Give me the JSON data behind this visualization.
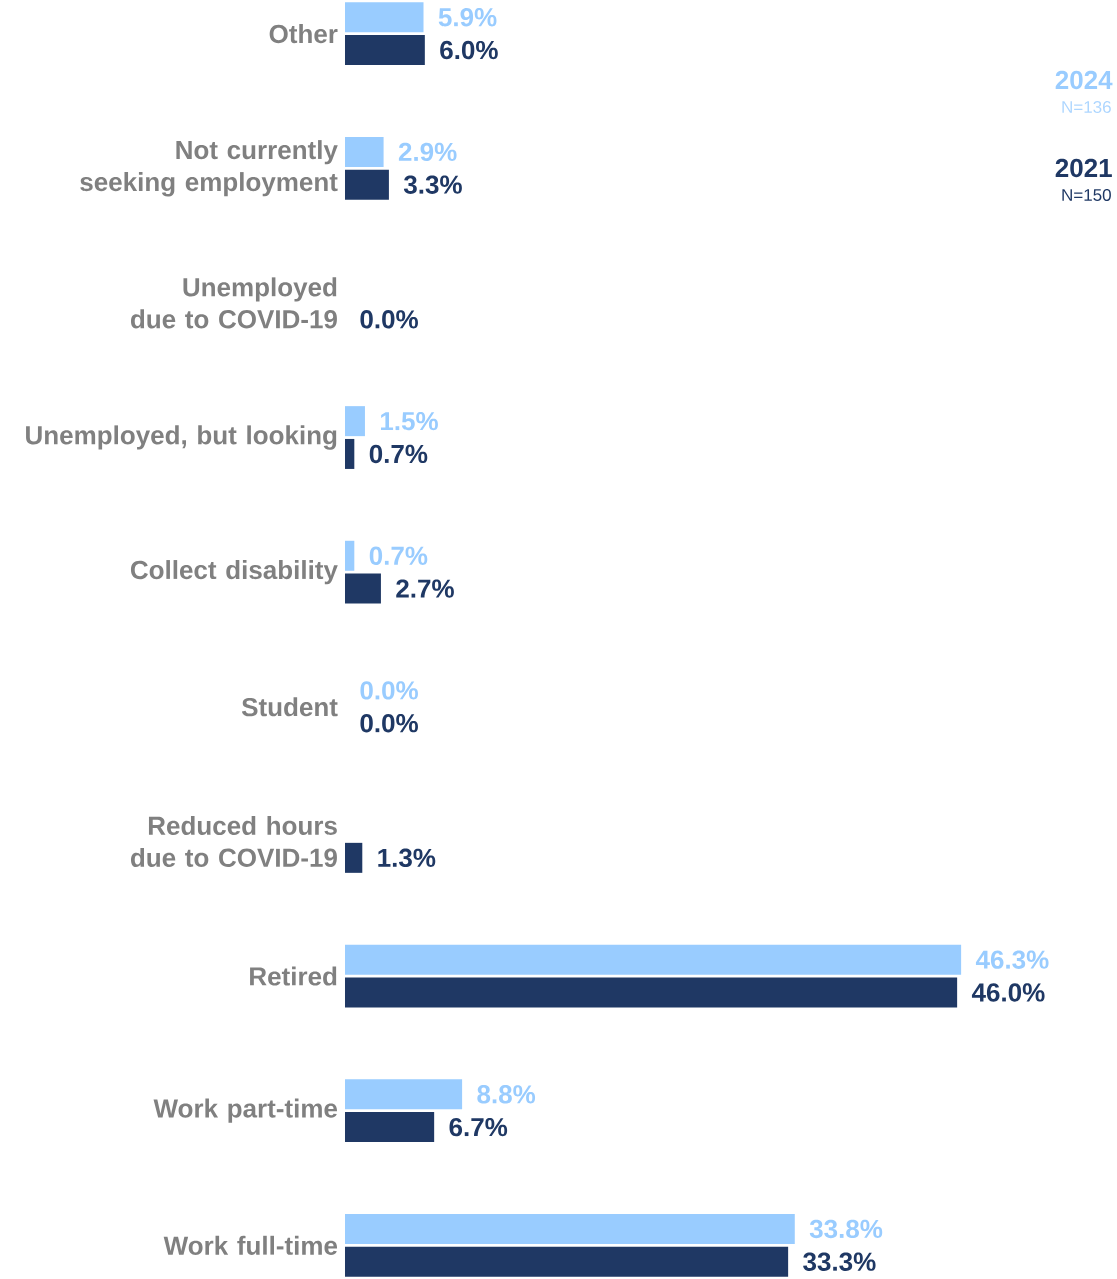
{
  "chart_data": {
    "type": "bar",
    "orientation": "horizontal",
    "tick_labels": "y",
    "categories": [
      "Other",
      "Not currently seeking employment",
      "Unemployed due to COVID-19",
      "Unemployed, but looking",
      "Collect disability",
      "Student",
      "Reduced hours due to COVID-19",
      "Retired",
      "Work part-time",
      "Work full-time"
    ],
    "series": [
      {
        "name": "2024",
        "color": "#99ccff",
        "values": [
          5.9,
          2.9,
          null,
          1.5,
          0.7,
          0.0,
          null,
          46.3,
          8.8,
          33.8
        ],
        "value_labels": [
          "5.9%",
          "2.9%",
          null,
          "1.5%",
          "0.7%",
          "0.0%",
          null,
          "46.3%",
          "8.8%",
          "33.8%"
        ]
      },
      {
        "name": "2021",
        "color": "#1f3864",
        "values": [
          6.0,
          3.3,
          0.0,
          0.7,
          2.7,
          0.0,
          1.3,
          46.0,
          6.7,
          33.3
        ],
        "value_labels": [
          "6.0%",
          "3.3%",
          "0.0%",
          "0.7%",
          "2.7%",
          "0.0%",
          "1.3%",
          "46.0%",
          "6.7%",
          "33.3%"
        ]
      }
    ],
    "annotations": [
      "N=136",
      "N=150"
    ]
  }
}
